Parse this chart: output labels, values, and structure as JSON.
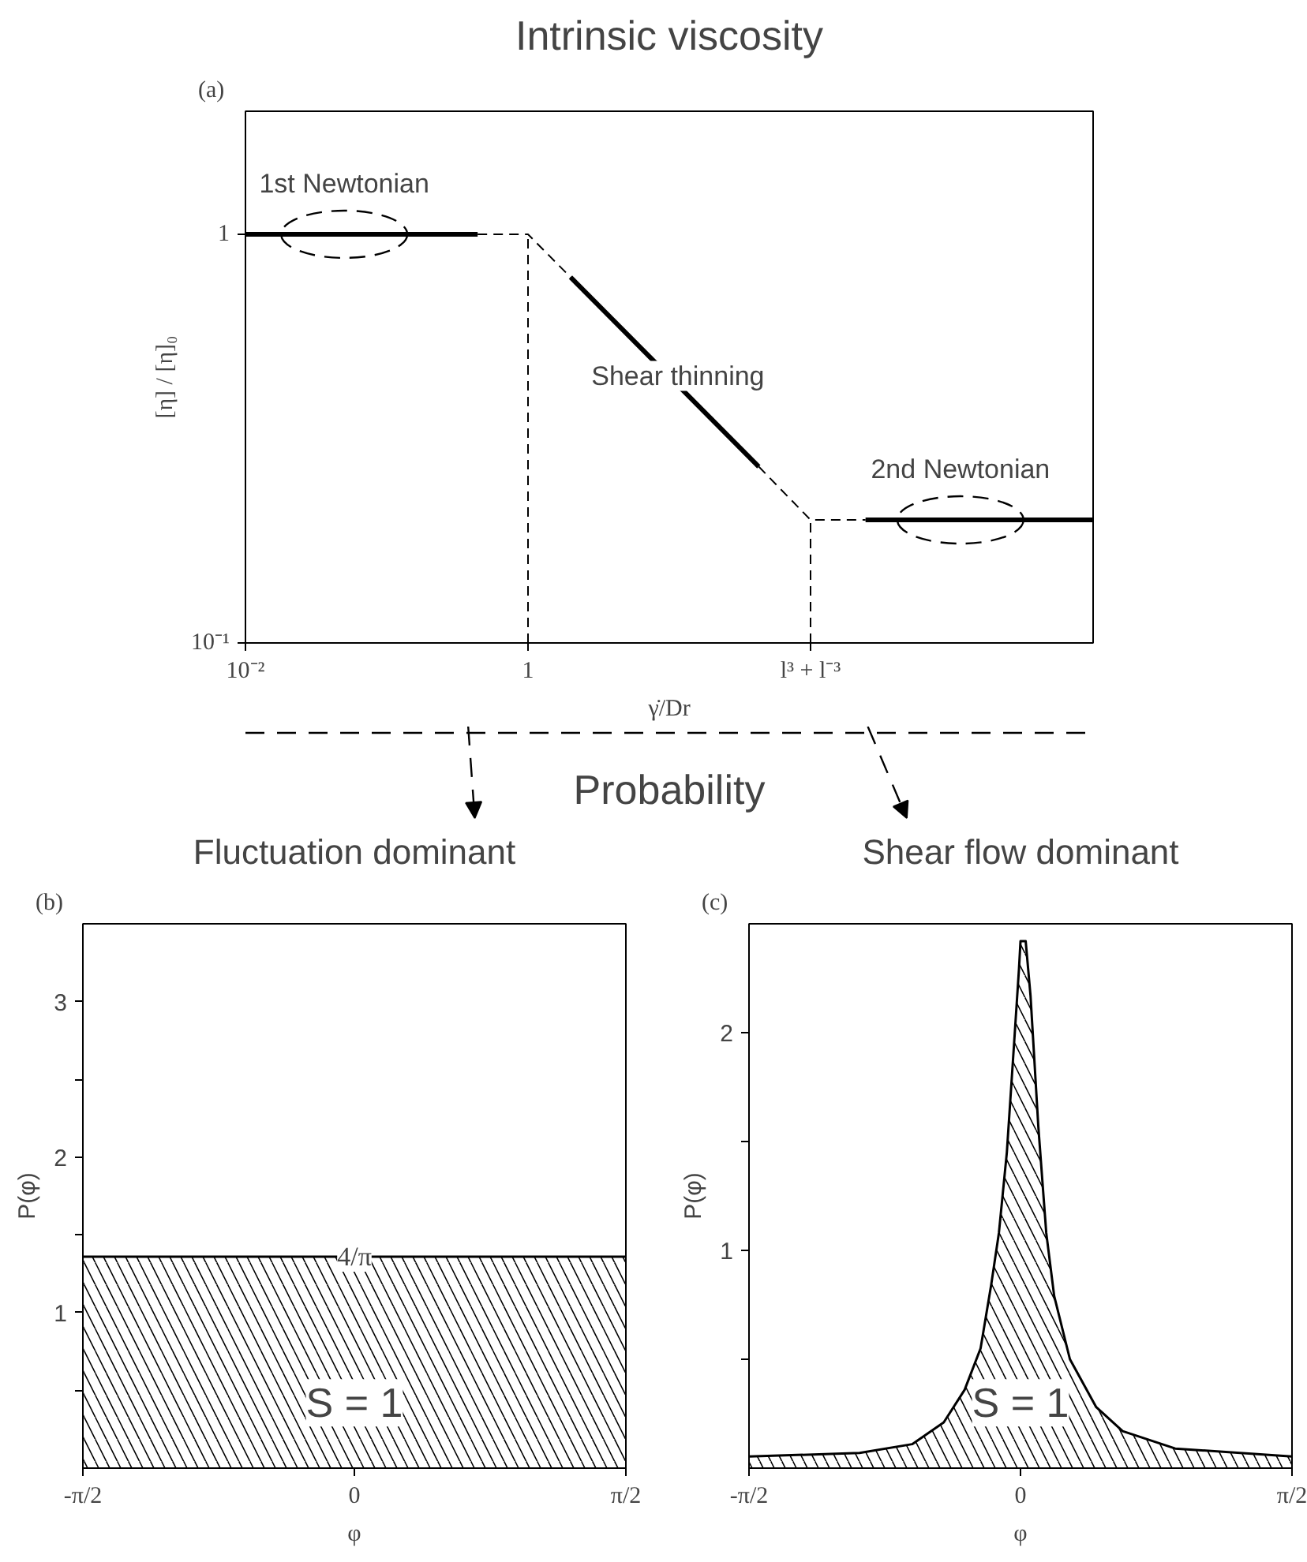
{
  "chart_data": [
    {
      "type": "line",
      "title": "Intrinsic viscosity",
      "xlabel": "γ̇/Dr",
      "ylabel": "[η] / [η]₀",
      "log": "xy",
      "xlim": [
        0.01,
        10000
      ],
      "ylim": [
        0.1,
        2
      ],
      "xticks": [
        {
          "value": 0.01,
          "label": "10⁻²"
        },
        1,
        {
          "value": 100,
          "label": "l³ + l⁻³"
        }
      ],
      "yticks": [
        {
          "value": 0.1,
          "label": "10⁻¹"
        },
        1
      ],
      "series": [
        {
          "color": "#000000",
          "line_style": "solid",
          "x": [
            0.01,
            0.44
          ],
          "values": [
            1,
            1
          ]
        },
        {
          "color": "#000000",
          "line_style": "dashed",
          "x": [
            0.44,
            1,
            2
          ],
          "values": [
            1,
            1,
            0.785
          ]
        },
        {
          "color": "#000000",
          "line_style": "solid",
          "x": [
            2,
            43
          ],
          "values": [
            0.785,
            0.27
          ]
        },
        {
          "color": "#000000",
          "line_style": "dashed",
          "x": [
            43,
            100,
            245
          ],
          "values": [
            0.27,
            0.2,
            0.2
          ]
        },
        {
          "color": "#000000",
          "line_style": "solid",
          "x": [
            245,
            10000
          ],
          "values": [
            0.2,
            0.2
          ]
        },
        {
          "color": "#000000",
          "line_style": "dashed",
          "x": [
            1,
            1
          ],
          "values": [
            0.1,
            1
          ]
        },
        {
          "color": "#000000",
          "line_style": "dashed",
          "x": [
            100,
            100
          ],
          "values": [
            0.1,
            0.2
          ]
        }
      ],
      "annotations": [
        "(a)",
        {
          "text": "1st Newtonian",
          "x": 0.05,
          "y": 1
        },
        {
          "text": "Shear thinning",
          "x": 11.5,
          "y": 0.45
        },
        {
          "text": "2nd Newtonian",
          "x": 1150,
          "y": 0.2
        }
      ]
    },
    {
      "type": "area",
      "title": "Fluctuation dominant",
      "xlabel": "φ",
      "ylabel": "P(φ)",
      "xlim": [
        -1.5708,
        1.5708
      ],
      "ylim": [
        0,
        3.5
      ],
      "xticks": [
        {
          "value": -1.5708,
          "label": "-π/2"
        },
        0,
        {
          "value": 1.5708,
          "label": "π/2"
        }
      ],
      "yticks": [
        {
          "value": 0.5,
          "label": null
        },
        1,
        {
          "value": 1.5,
          "label": null
        },
        2,
        {
          "value": 2.5,
          "label": null
        },
        3
      ],
      "x": [
        -1.5708,
        1.5708
      ],
      "values": [
        1.36,
        1.36
      ],
      "color": "#000000",
      "annotations": [
        "Probability",
        "(b)",
        {
          "text": "4/π",
          "x": 0,
          "y": 1.36
        },
        "S = 1"
      ]
    },
    {
      "type": "area",
      "title": "Shear flow dominant",
      "xlabel": "φ",
      "ylabel": "P(φ)",
      "xlim": [
        -1.5708,
        1.5708
      ],
      "ylim": [
        0,
        2.5
      ],
      "xticks": [
        {
          "value": -1.5708,
          "label": "-π/2"
        },
        0,
        {
          "value": 1.5708,
          "label": "π/2"
        }
      ],
      "yticks": [
        {
          "value": 0.5,
          "label": null
        },
        1,
        {
          "value": 1.5,
          "label": null
        },
        2
      ],
      "x": [
        -1.5708,
        -0.931,
        -0.627,
        -0.444,
        -0.323,
        -0.231,
        -0.17,
        -0.125,
        -0.079,
        -0.033,
        -0.009,
        0,
        0.03,
        0.058,
        0.103,
        0.149,
        0.195,
        0.286,
        0.438,
        0.591,
        0.895,
        1.5708
      ],
      "values": [
        0.053,
        0.07,
        0.11,
        0.21,
        0.36,
        0.55,
        0.84,
        1.08,
        1.45,
        2.0,
        2.29,
        2.42,
        2.42,
        2.17,
        1.57,
        1.08,
        0.79,
        0.5,
        0.28,
        0.17,
        0.09,
        0.053
      ],
      "color": "#000000",
      "annotations": [
        "(c)",
        "S = 1"
      ]
    }
  ]
}
